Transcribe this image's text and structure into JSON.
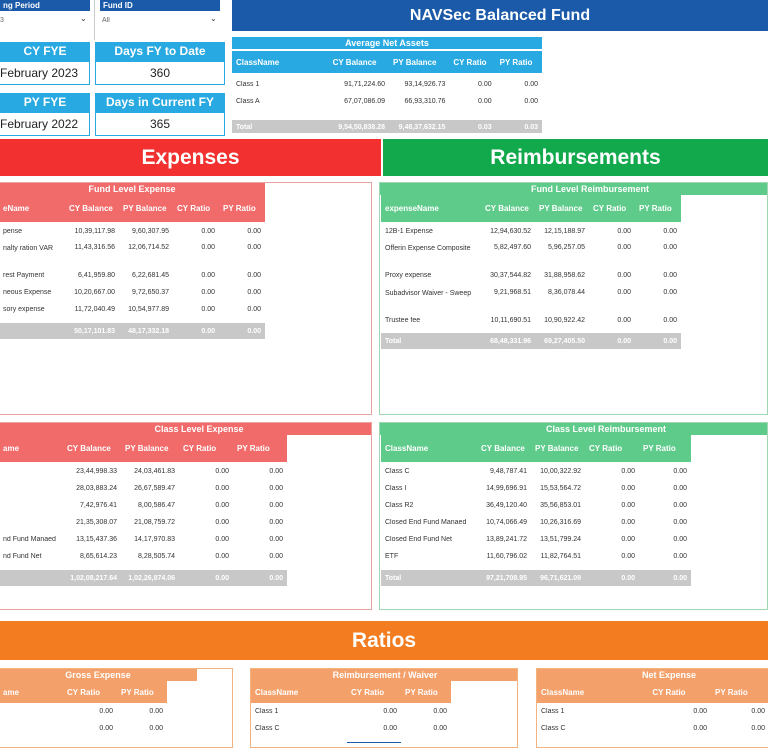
{
  "slicers": {
    "reporting_period": {
      "title": "ng Period",
      "value": "3"
    },
    "fund_id": {
      "title": "Fund ID",
      "value": "All"
    }
  },
  "kpis": {
    "cy_fye": {
      "label": "CY FYE",
      "value": "February 2023"
    },
    "days_fy_to_date": {
      "label": "Days FY to Date",
      "value": "360"
    },
    "py_fye": {
      "label": "PY FYE",
      "value": "February 2022"
    },
    "days_in_current_fy": {
      "label": "Days in Current FY",
      "value": "365"
    }
  },
  "fund_title": "NAVSec Balanced Fund",
  "average_net_assets": {
    "title": "Average Net Assets",
    "columns": [
      "ClassName",
      "CY Balance",
      "PY Balance",
      "CY Ratio",
      "PY Ratio"
    ],
    "rows": [
      [
        "Class 1",
        "91,71,224.60",
        "93,14,926.73",
        "0.00",
        "0.00"
      ],
      [
        "Class A",
        "67,07,086.09",
        "66,93,310.76",
        "0.00",
        "0.00"
      ]
    ],
    "total": [
      "Total",
      "9,54,50,838.28",
      "9,48,37,632.15",
      "0.03",
      "0.03"
    ]
  },
  "sections": {
    "expenses": "Expenses",
    "reimbursements": "Reimbursements",
    "ratios": "Ratios"
  },
  "fund_level_expense": {
    "title": "Fund Level Expense",
    "columns": [
      "eName",
      "CY Balance",
      "PY Balance",
      "CY Ratio",
      "PY Ratio"
    ],
    "rows": [
      [
        "pense",
        "10,39,117.98",
        "9,60,307.95",
        "0.00",
        "0.00"
      ],
      [
        "nalty\nration VAR",
        "11,43,316.56",
        "12,06,714.52",
        "0.00",
        "0.00"
      ],
      [
        "rest Payment",
        "6,41,959.80",
        "6,22,681.45",
        "0.00",
        "0.00"
      ],
      [
        "neous Expense",
        "10,20,667.00",
        "9,72,650.37",
        "0.00",
        "0.00"
      ],
      [
        "sory expense",
        "11,72,040.49",
        "10,54,977.89",
        "0.00",
        "0.00"
      ]
    ],
    "total": [
      "",
      "50,17,101.83",
      "48,17,332.18",
      "0.00",
      "0.00"
    ]
  },
  "fund_level_reimbursement": {
    "title": "Fund Level Reimbursement",
    "columns": [
      "expenseName",
      "CY Balance",
      "PY Balance",
      "CY Ratio",
      "PY Ratio"
    ],
    "rows": [
      [
        "12B-1 Expense",
        "12,94,630.52",
        "12,15,188.97",
        "0.00",
        "0.00"
      ],
      [
        "Offerin Expense\nComposite",
        "5,82,497.60",
        "5,96,257.05",
        "0.00",
        "0.00"
      ],
      [
        "Proxy expense",
        "30,37,544.82",
        "31,88,958.62",
        "0.00",
        "0.00"
      ],
      [
        "Subadvisor Waiver -\nSweep",
        "9,21,968.51",
        "8,36,078.44",
        "0.00",
        "0.00"
      ],
      [
        "Trustee fee",
        "10,11,690.51",
        "10,90,922.42",
        "0.00",
        "0.00"
      ]
    ],
    "total": [
      "Total",
      "68,48,331.96",
      "69,27,405.50",
      "0.00",
      "0.00"
    ]
  },
  "class_level_expense": {
    "title": "Class Level Expense",
    "columns": [
      "ame",
      "CY Balance",
      "PY Balance",
      "CY Ratio",
      "PY Ratio"
    ],
    "rows": [
      [
        "",
        "23,44,998.33",
        "24,03,461.83",
        "0.00",
        "0.00"
      ],
      [
        "",
        "28,03,883.24",
        "26,67,589.47",
        "0.00",
        "0.00"
      ],
      [
        "",
        "7,42,976.41",
        "8,00,586.47",
        "0.00",
        "0.00"
      ],
      [
        "",
        "21,35,308.07",
        "21,08,759.72",
        "0.00",
        "0.00"
      ],
      [
        "nd Fund Manaed",
        "13,15,437.36",
        "14,17,970.83",
        "0.00",
        "0.00"
      ],
      [
        "nd Fund Net",
        "8,65,614.23",
        "8,28,505.74",
        "0.00",
        "0.00"
      ]
    ],
    "total": [
      "",
      "1,02,08,217.64",
      "1,02,26,874.06",
      "0.00",
      "0.00"
    ]
  },
  "class_level_reimbursement": {
    "title": "Class Level Reimbursement",
    "columns": [
      "ClassName",
      "CY Balance",
      "PY Balance",
      "CY Ratio",
      "PY Ratio"
    ],
    "rows": [
      [
        "Class C",
        "9,48,787.41",
        "10,00,322.92",
        "0.00",
        "0.00"
      ],
      [
        "Class I",
        "14,99,696.91",
        "15,53,564.72",
        "0.00",
        "0.00"
      ],
      [
        "Class R2",
        "36,49,120.40",
        "35,56,853.01",
        "0.00",
        "0.00"
      ],
      [
        "Closed End Fund Manaed",
        "10,74,066.49",
        "10,26,316.69",
        "0.00",
        "0.00"
      ],
      [
        "Closed End Fund Net",
        "13,89,241.72",
        "13,51,799.24",
        "0.00",
        "0.00"
      ],
      [
        "ETF",
        "11,60,796.02",
        "11,82,764.51",
        "0.00",
        "0.00"
      ]
    ],
    "total": [
      "Total",
      "97,21,708.95",
      "96,71,621.09",
      "0.00",
      "0.00"
    ]
  },
  "gross_expense": {
    "title": "Gross Expense",
    "columns": [
      "ame",
      "CY Ratio",
      "PY Ratio"
    ],
    "rows": [
      [
        "",
        "0.00",
        "0.00"
      ],
      [
        "",
        "0.00",
        "0.00"
      ]
    ]
  },
  "reimbursement_waiver": {
    "title": "Reimbursement / Waiver",
    "columns": [
      "ClassName",
      "CY Ratio",
      "PY Ratio"
    ],
    "rows": [
      [
        "Class 1",
        "0.00",
        "0.00"
      ],
      [
        "Class C",
        "0.00",
        "0.00"
      ]
    ]
  },
  "net_expense": {
    "title": "Net Expense",
    "columns": [
      "ClassName",
      "CY Ratio",
      "PY Ratio"
    ],
    "rows": [
      [
        "Class 1",
        "0.00",
        "0.00"
      ],
      [
        "Class C",
        "0.00",
        "0.00"
      ]
    ]
  },
  "colors": {
    "navy": "#1a5aa8",
    "sky": "#29a9e1",
    "red": "#f23030",
    "green": "#12a84c",
    "orange": "#f27c1f"
  }
}
